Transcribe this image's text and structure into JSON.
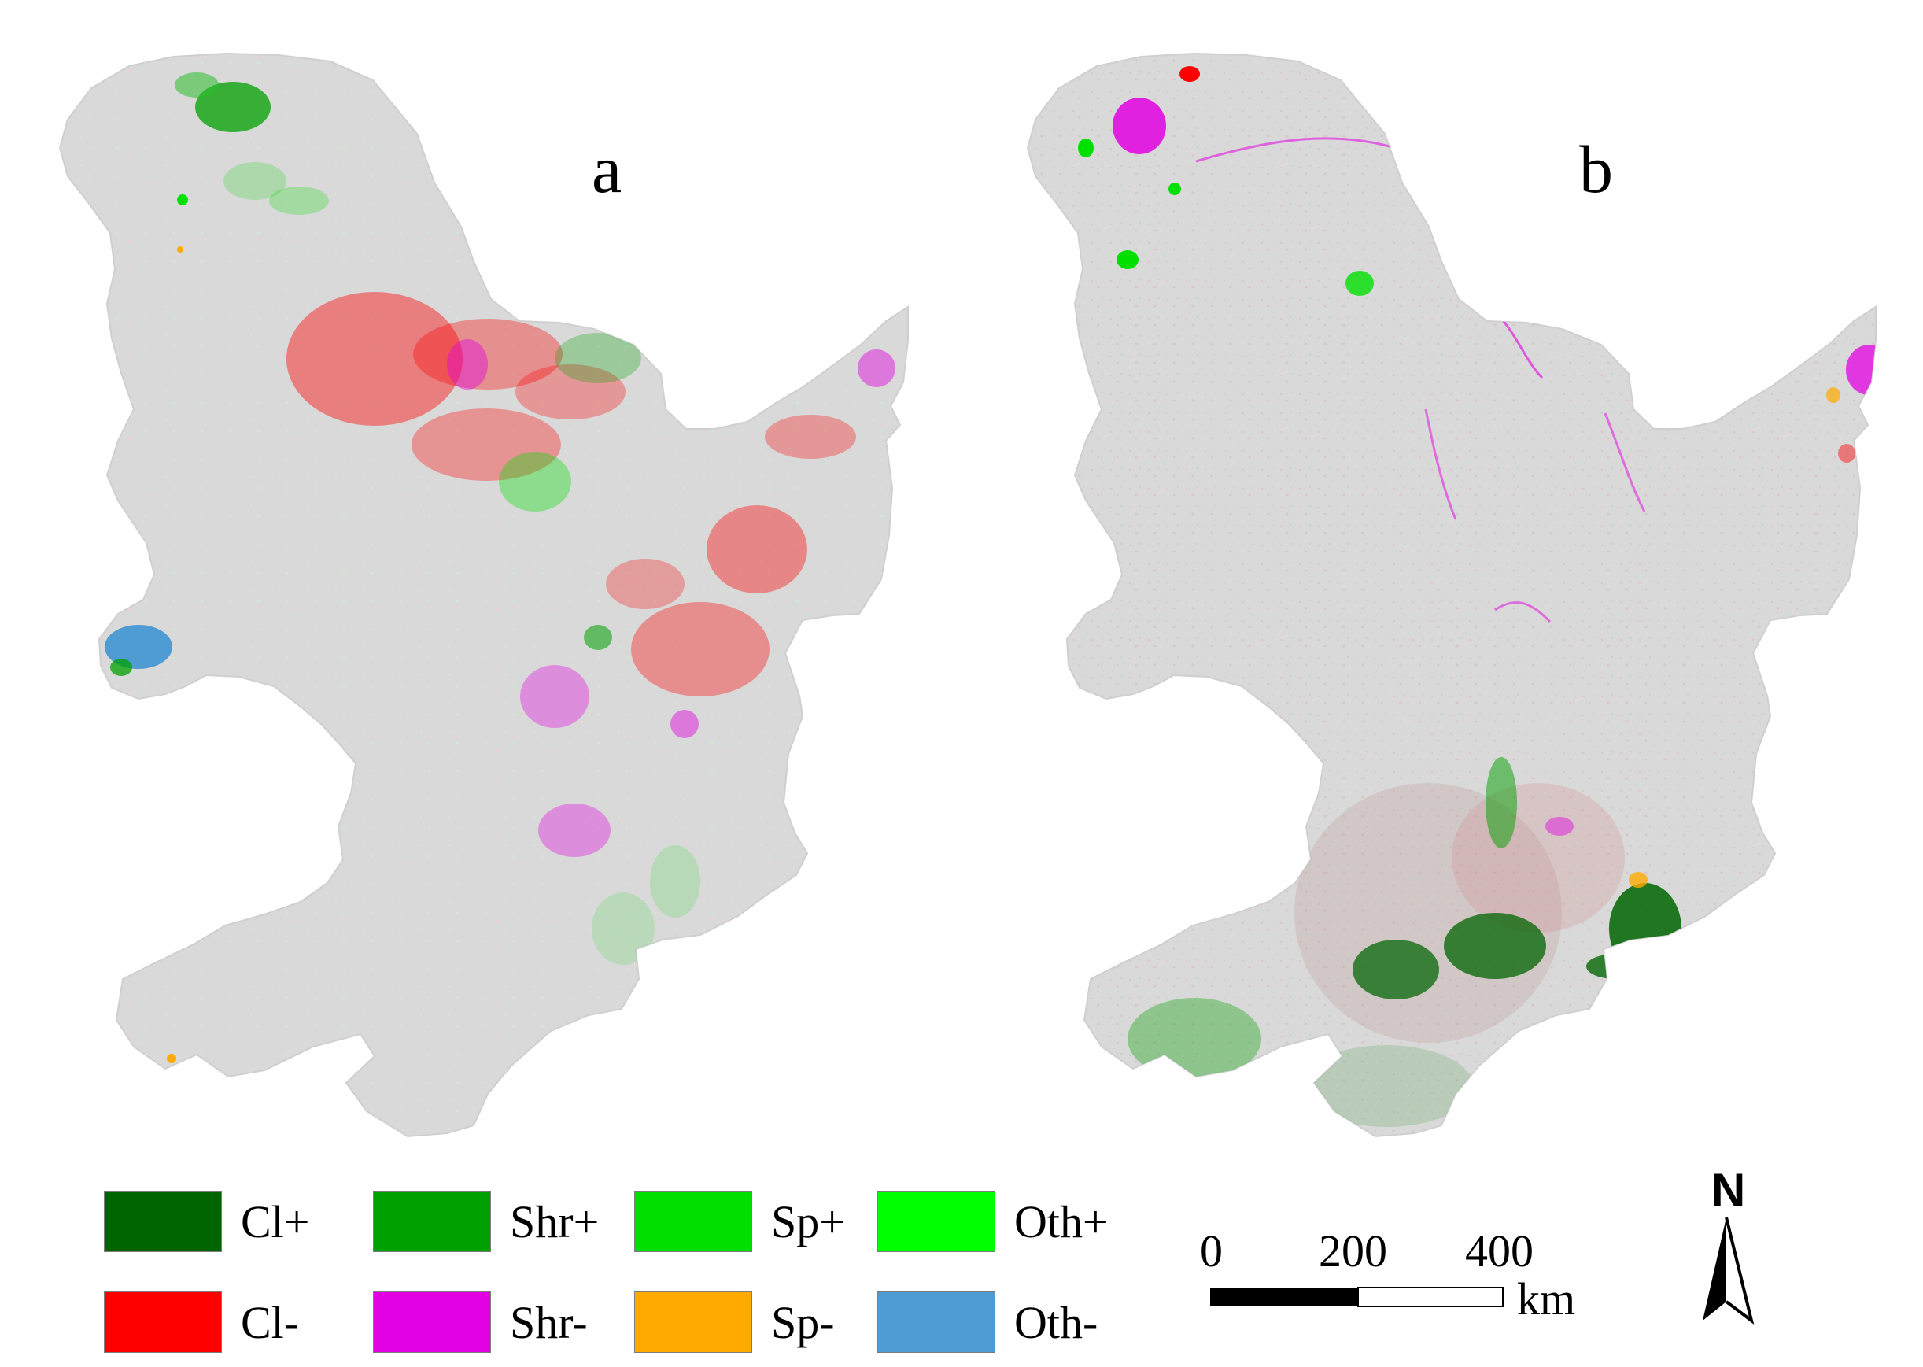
{
  "panels": [
    {
      "label": "a"
    },
    {
      "label": "b"
    }
  ],
  "legend": {
    "items": [
      {
        "label": "Cl+",
        "color": "#006400"
      },
      {
        "label": "Shr+",
        "color": "#00a000"
      },
      {
        "label": "Sp+",
        "color": "#00e000"
      },
      {
        "label": "Oth+",
        "color": "#00ff00"
      },
      {
        "label": "Cl-",
        "color": "#ff0000"
      },
      {
        "label": "Shr-",
        "color": "#e100e1"
      },
      {
        "label": "Sp-",
        "color": "#ffaa00"
      },
      {
        "label": "Oth-",
        "color": "#4f9bd3"
      }
    ]
  },
  "scale_bar": {
    "ticks": [
      "0",
      "200",
      "400"
    ],
    "unit": "km"
  },
  "north_arrow": {
    "label": "N"
  },
  "colors": {
    "land": "#d9d9d9",
    "background": "#ffffff",
    "text": "#000000"
  }
}
